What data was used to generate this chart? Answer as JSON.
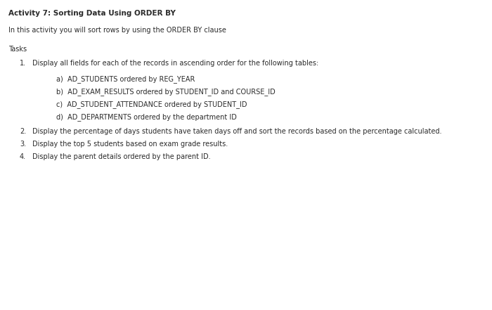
{
  "title": "Activity 7: Sorting Data Using ORDER BY",
  "intro": "In this activity you will sort rows by using the ORDER BY clause",
  "tasks_label": "Tasks",
  "task1_num": "1.",
  "task1_main": "Display all fields for each of the records in ascending order for the following tables:",
  "task1_subs": [
    "a)  AD_STUDENTS ordered by REG_YEAR",
    "b)  AD_EXAM_RESULTS ordered by STUDENT_ID and COURSE_ID",
    "c)  AD_STUDENT_ATTENDANCE ordered by STUDENT_ID",
    "d)  AD_DEPARTMENTS ordered by the department ID"
  ],
  "task2_num": "2.",
  "task2": "Display the percentage of days students have taken days off and sort the records based on the percentage calculated.",
  "task3_num": "3.",
  "task3": "Display the top 5 students based on exam grade results.",
  "task4_num": "4.",
  "task4": "Display the parent details ordered by the parent ID.",
  "bg_color": "#ffffff",
  "text_color": "#2a2a2a",
  "title_fontsize": 7.5,
  "body_fontsize": 7.0,
  "sub_fontsize": 7.0,
  "font_family": "DejaVu Sans"
}
